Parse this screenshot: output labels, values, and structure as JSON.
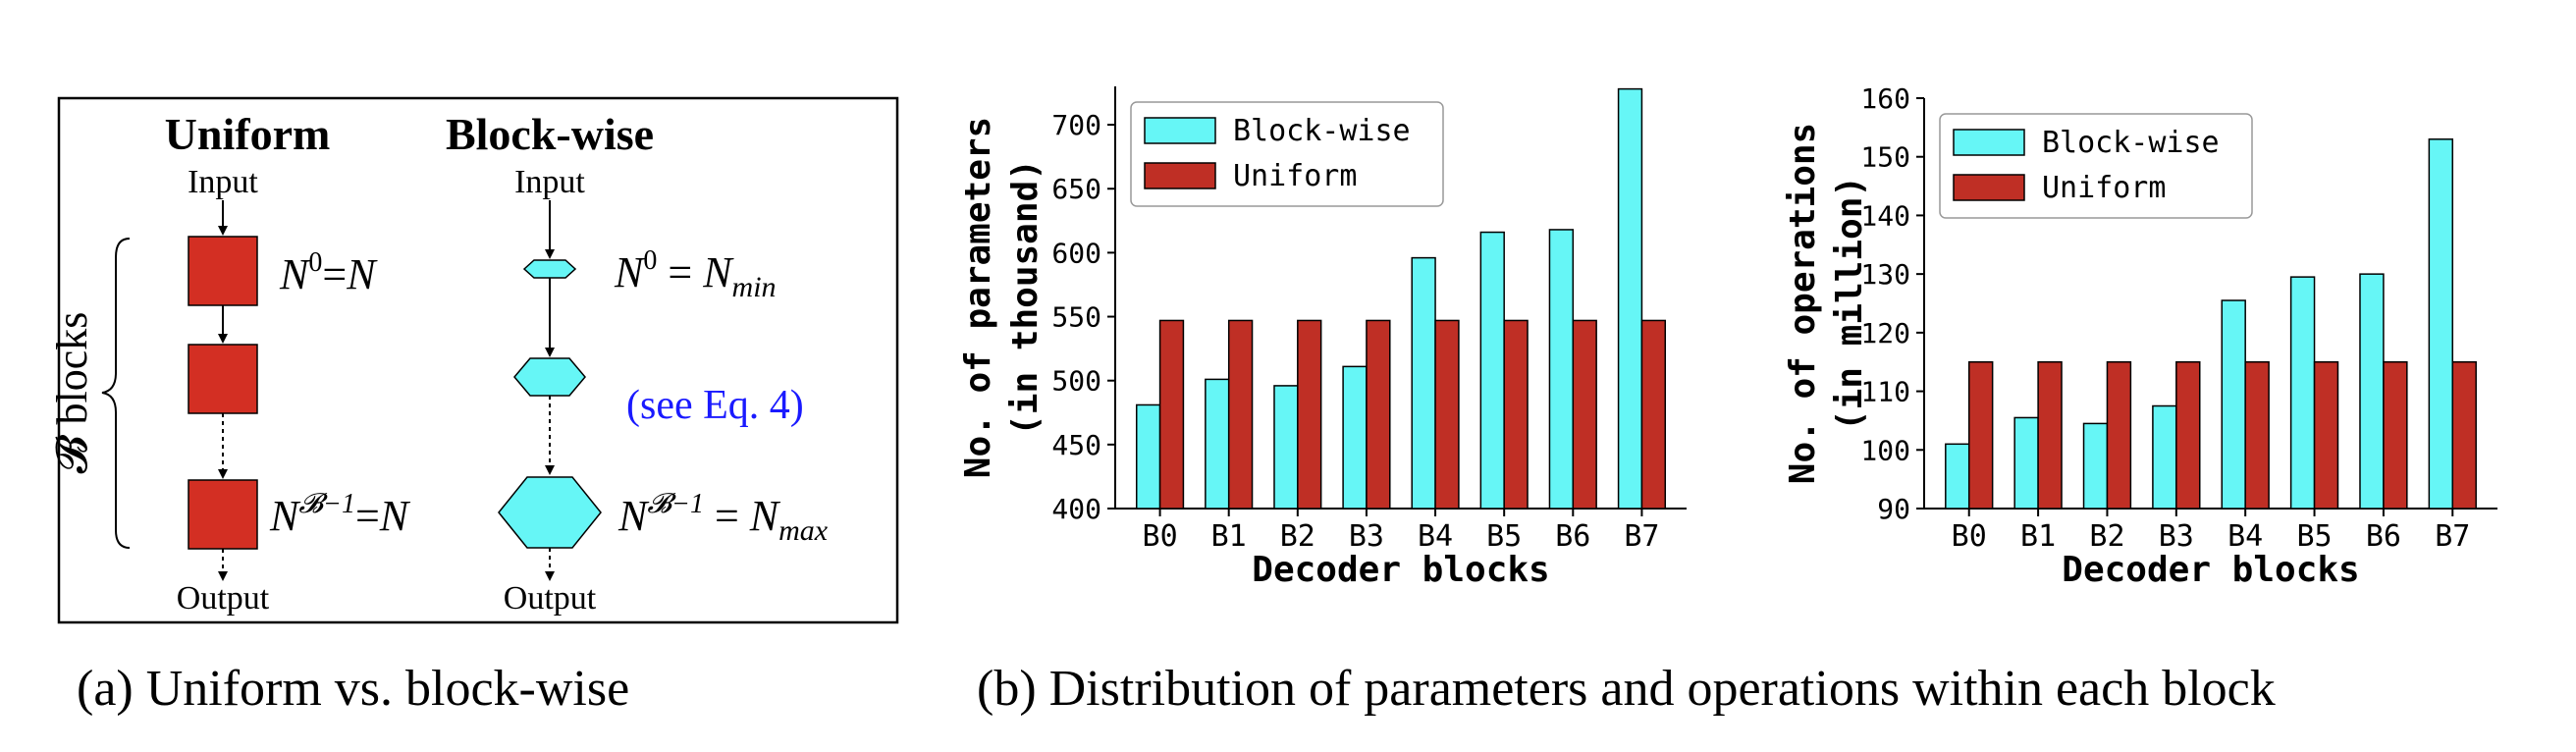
{
  "diagram": {
    "uniform_title": "Uniform",
    "blockwise_title": "Block-wise",
    "input_label": "Input",
    "output_label": "Output",
    "brace_label": "𝓑 blocks",
    "uniform_first_eq": "N⁰=N",
    "uniform_last_eq": "N^(𝓑−1)=N",
    "blockwise_first_eq": "N⁰ = N_min",
    "blockwise_mid_eq": "(see Eq. 4)",
    "blockwise_last_eq": "N^(𝓑−1) = N_max",
    "colors": {
      "uniform_block": "#d32f23",
      "blockwise_block": "#66f6f6",
      "eq_ref": "#1a1aff"
    }
  },
  "captions": {
    "a": "(a) Uniform vs. block-wise",
    "b": "(b) Distribution of parameters and operations within each block"
  },
  "colors": {
    "blockwise": "#66f6f6",
    "uniform": "#bf2f25"
  },
  "chart_data": [
    {
      "type": "bar",
      "categories": [
        "B0",
        "B1",
        "B2",
        "B3",
        "B4",
        "B5",
        "B6",
        "B7"
      ],
      "series": [
        {
          "name": "Block-wise",
          "values": [
            481,
            501,
            496,
            511,
            596,
            616,
            618,
            728
          ]
        },
        {
          "name": "Uniform",
          "values": [
            547,
            547,
            547,
            547,
            547,
            547,
            547,
            547
          ]
        }
      ],
      "xlabel": "Decoder blocks",
      "ylabel": "No. of parameters",
      "ylabel2": "(in thousand)",
      "ylim": [
        400,
        730
      ],
      "yticks": [
        400,
        450,
        500,
        550,
        600,
        650,
        700
      ],
      "legend": "top-left",
      "grid": false
    },
    {
      "type": "bar",
      "categories": [
        "B0",
        "B1",
        "B2",
        "B3",
        "B4",
        "B5",
        "B6",
        "B7"
      ],
      "series": [
        {
          "name": "Block-wise",
          "values": [
            101,
            105.5,
            104.5,
            107.5,
            125.5,
            129.5,
            130,
            153
          ]
        },
        {
          "name": "Uniform",
          "values": [
            115,
            115,
            115,
            115,
            115,
            115,
            115,
            115
          ]
        }
      ],
      "xlabel": "Decoder blocks",
      "ylabel": "No. of operations",
      "ylabel2": "(in million)",
      "ylim": [
        90,
        160
      ],
      "yticks": [
        90,
        100,
        110,
        120,
        130,
        140,
        150,
        160
      ],
      "legend": "top-left",
      "grid": false
    }
  ]
}
